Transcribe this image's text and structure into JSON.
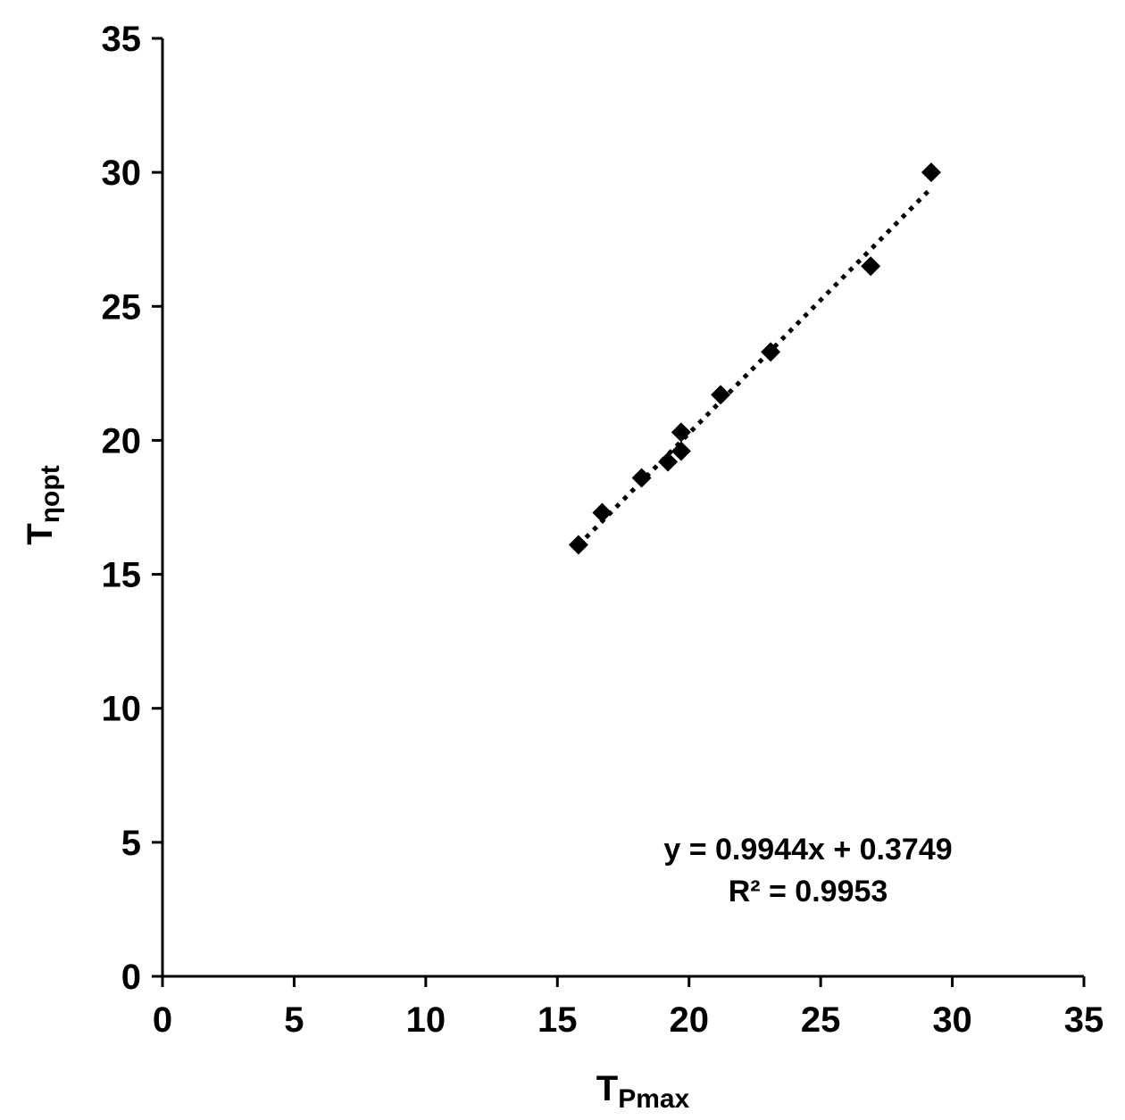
{
  "chart_data": {
    "type": "scatter",
    "x_label": {
      "main": "T",
      "sub": "Pmax"
    },
    "y_label": {
      "main": "T",
      "sub": "ηopt"
    },
    "xlim": [
      0,
      35
    ],
    "ylim": [
      0,
      35
    ],
    "x_ticks": [
      0,
      5,
      10,
      15,
      20,
      25,
      30,
      35
    ],
    "y_ticks": [
      0,
      5,
      10,
      15,
      20,
      25,
      30,
      35
    ],
    "grid": false,
    "marker": "diamond",
    "colors": {
      "marker": "#000000",
      "trendline": "#000000",
      "axis": "#000000"
    },
    "series": [
      {
        "x": [
          15.8,
          16.7,
          18.2,
          19.2,
          19.7,
          19.7,
          21.2,
          23.1,
          26.9,
          29.2
        ],
        "y": [
          16.1,
          17.3,
          18.6,
          19.2,
          19.6,
          20.3,
          21.7,
          23.3,
          26.5,
          30.0
        ]
      }
    ],
    "trendline": {
      "slope": 0.9944,
      "intercept": 0.3749,
      "x_range": [
        15.8,
        29.2
      ],
      "style": "dotted",
      "equation": "y = 0.9944x + 0.3749",
      "r_squared": "R² = 0.9953"
    }
  }
}
